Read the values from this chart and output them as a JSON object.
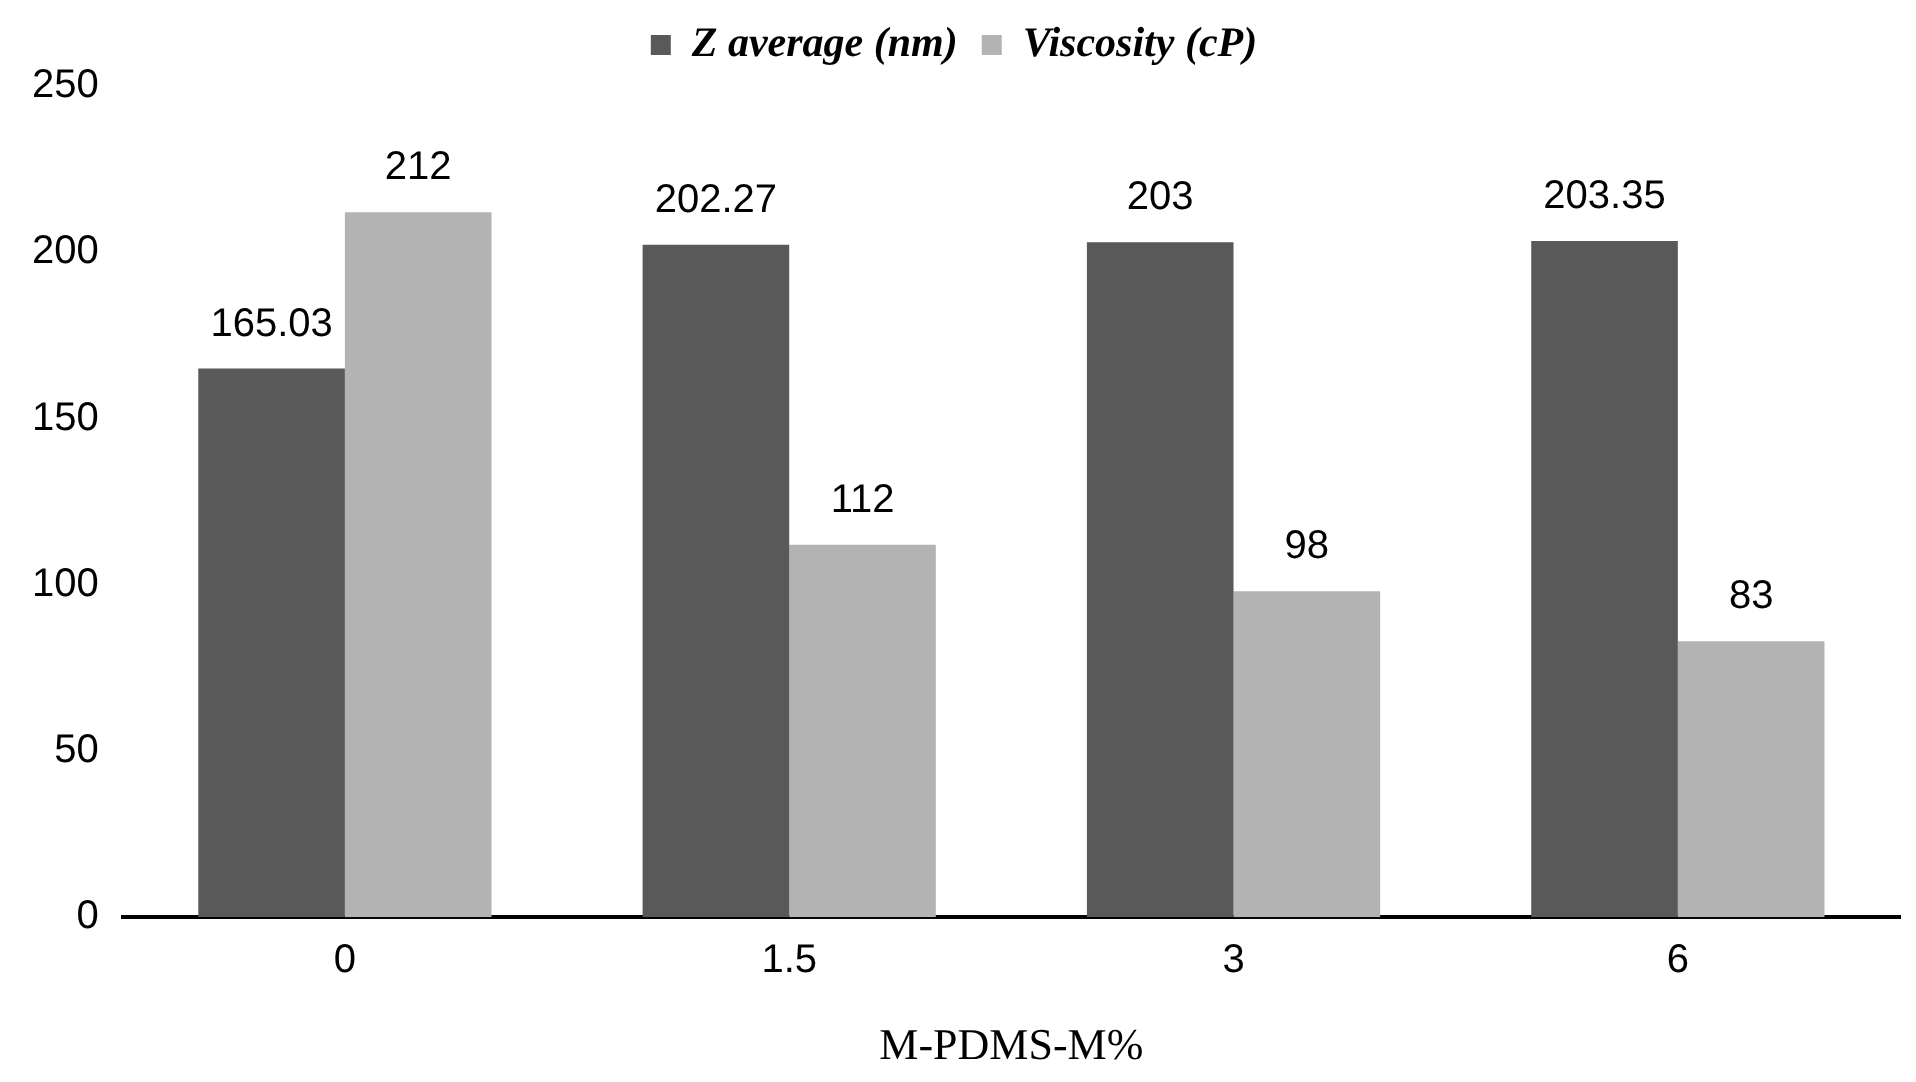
{
  "chart_data": {
    "type": "bar",
    "xlabel": "M-PDMS-M%",
    "categories": [
      "0",
      "1.5",
      "3",
      "6"
    ],
    "series": [
      {
        "name": "Z average (nm)",
        "color": "#595959",
        "values": [
          165.03,
          202.27,
          203,
          203.35
        ]
      },
      {
        "name": "Viscosity (cP)",
        "color": "#b3b3b3",
        "values": [
          212,
          112,
          98,
          83
        ]
      }
    ],
    "ylim": [
      0,
      250
    ],
    "yticks": [
      0,
      50,
      100,
      150,
      200,
      250
    ],
    "grid": false,
    "legend": "top",
    "data_labels": true
  }
}
